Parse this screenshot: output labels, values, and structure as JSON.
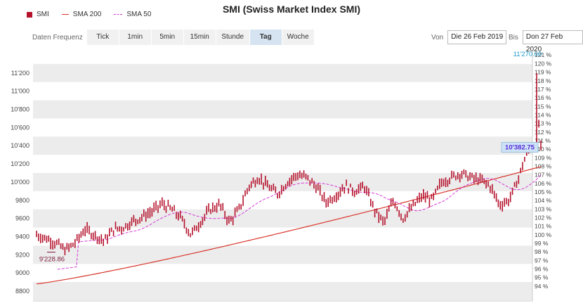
{
  "title": "SMI (Swiss Market Index SMI)",
  "legend": {
    "price": "SMI",
    "sma200": "SMA 200",
    "sma50": "SMA 50"
  },
  "toolbar": {
    "label": "Daten Frequenz",
    "buttons": [
      "Tick",
      "1min",
      "5min",
      "15min",
      "Stunde",
      "Tag",
      "Woche"
    ],
    "active": "Tag"
  },
  "date_range": {
    "from_label": "Von",
    "from_value": "Die 26 Feb 2019",
    "to_label": "Bis",
    "to_value": "Don 27 Feb 2020"
  },
  "colors": {
    "candle": "#b5122c",
    "sma200": "#d9342b",
    "sma50": "#d63ad6",
    "high_label": "#1a98c9",
    "last_label": "#5a2bd9"
  },
  "chart_data": {
    "type": "line",
    "x_range": [
      "2019-02-26",
      "2020-02-27"
    ],
    "ylim": [
      8800,
      11400
    ],
    "y_ticks": [
      "8800",
      "9000",
      "9200",
      "9400",
      "9600",
      "9800",
      "10'000",
      "10'200",
      "10'400",
      "10'600",
      "10'800",
      "11'000",
      "11'200"
    ],
    "y_tick_values": [
      8800,
      9000,
      9200,
      9400,
      9600,
      9800,
      10000,
      10200,
      10400,
      10600,
      10800,
      11000,
      11200
    ],
    "y2_ticks": [
      "94 %",
      "95 %",
      "96 %",
      "97 %",
      "98 %",
      "99 %",
      "100 %",
      "101 %",
      "102 %",
      "103 %",
      "104 %",
      "105 %",
      "106 %",
      "107 %",
      "108 %",
      "109 %",
      "110 %",
      "111 %",
      "112 %",
      "113 %",
      "114 %",
      "115 %",
      "116 %",
      "117 %",
      "118 %",
      "119 %",
      "120 %",
      "121 %"
    ],
    "y2_base": 9420,
    "grid": true,
    "annotations": {
      "low": "9'228.86",
      "high": "11'270.00",
      "last": "10'382.75"
    },
    "series": [
      {
        "key": "price",
        "points": [
          [
            "2019-02-26",
            9420
          ],
          [
            "2019-03-05",
            9380
          ],
          [
            "2019-03-12",
            9330
          ],
          [
            "2019-03-19",
            9250
          ],
          [
            "2019-03-26",
            9330
          ],
          [
            "2019-04-02",
            9480
          ],
          [
            "2019-04-09",
            9420
          ],
          [
            "2019-04-16",
            9350
          ],
          [
            "2019-04-23",
            9480
          ],
          [
            "2019-04-30",
            9500
          ],
          [
            "2019-05-07",
            9570
          ],
          [
            "2019-05-14",
            9620
          ],
          [
            "2019-05-21",
            9680
          ],
          [
            "2019-05-28",
            9760
          ],
          [
            "2019-06-04",
            9700
          ],
          [
            "2019-06-11",
            9600
          ],
          [
            "2019-06-18",
            9420
          ],
          [
            "2019-06-25",
            9560
          ],
          [
            "2019-07-02",
            9700
          ],
          [
            "2019-07-09",
            9750
          ],
          [
            "2019-07-16",
            9560
          ],
          [
            "2019-07-23",
            9700
          ],
          [
            "2019-07-30",
            9950
          ],
          [
            "2019-08-06",
            10050
          ],
          [
            "2019-08-13",
            9950
          ],
          [
            "2019-08-20",
            9870
          ],
          [
            "2019-08-27",
            10000
          ],
          [
            "2019-09-03",
            10080
          ],
          [
            "2019-09-10",
            10050
          ],
          [
            "2019-09-17",
            9950
          ],
          [
            "2019-09-24",
            9780
          ],
          [
            "2019-10-01",
            9850
          ],
          [
            "2019-10-08",
            9960
          ],
          [
            "2019-10-15",
            9900
          ],
          [
            "2019-10-22",
            9950
          ],
          [
            "2019-10-29",
            9700
          ],
          [
            "2019-11-05",
            9550
          ],
          [
            "2019-11-12",
            9800
          ],
          [
            "2019-11-19",
            9600
          ],
          [
            "2019-11-26",
            9730
          ],
          [
            "2019-12-03",
            9850
          ],
          [
            "2019-12-10",
            9800
          ],
          [
            "2019-12-17",
            10000
          ],
          [
            "2019-12-24",
            10050
          ],
          [
            "2019-12-31",
            10100
          ],
          [
            "2020-01-07",
            10050
          ],
          [
            "2020-01-14",
            10020
          ],
          [
            "2020-01-21",
            9960
          ],
          [
            "2020-01-28",
            9750
          ],
          [
            "2020-02-04",
            9800
          ],
          [
            "2020-02-11",
            10050
          ],
          [
            "2020-02-14",
            10200
          ],
          [
            "2020-02-18",
            10350
          ],
          [
            "2020-02-20",
            10400
          ],
          [
            "2020-02-21",
            10380
          ],
          [
            "2020-02-24",
            10400
          ],
          [
            "2020-02-25",
            10560
          ],
          [
            "2020-02-26",
            10700
          ],
          [
            "2020-02-27",
            10382.75
          ]
        ]
      }
    ]
  }
}
